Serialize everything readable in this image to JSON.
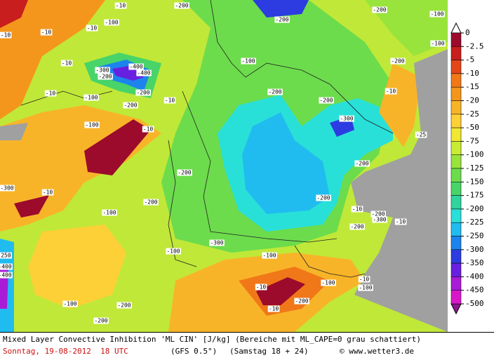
{
  "map": {
    "contour_labels": [
      -10,
      -10,
      -10,
      -100,
      -200,
      -10,
      -300,
      -400,
      -400,
      -200,
      -200,
      -100,
      -200,
      -10,
      -100,
      -10,
      -10,
      -100,
      -200,
      -200,
      -200,
      -100,
      -100,
      -200,
      -10,
      -200,
      -300,
      -25,
      -200,
      -200,
      -10,
      -200,
      -300,
      -200,
      -10,
      -200,
      -200,
      -100,
      -10,
      -300,
      -300,
      -100,
      -100,
      -10,
      -10,
      -100,
      -10,
      -100,
      -200,
      -200,
      -100,
      -400,
      -400,
      -250,
      -200,
      -10
    ]
  },
  "legend": {
    "levels": [
      0,
      -2.5,
      -5,
      -10,
      -15,
      -20,
      -25,
      -50,
      -75,
      -100,
      -125,
      -150,
      -175,
      -200,
      -225,
      -250,
      -300,
      -350,
      -400,
      -450,
      -500
    ],
    "colors": [
      "#9c0a2c",
      "#c81e1e",
      "#e4461a",
      "#f07818",
      "#f4961c",
      "#f8b428",
      "#fcd036",
      "#f0e832",
      "#c8ec34",
      "#98e43c",
      "#6cdc4c",
      "#48d468",
      "#30d49c",
      "#28e0d8",
      "#20bcf0",
      "#1c84ec",
      "#2c3ce0",
      "#6820e0",
      "#a81cd8",
      "#d818c8"
    ],
    "top_color": "#ffffff",
    "bottom_color": "#8c1890"
  },
  "footer": {
    "description": "Mixed Layer Convective Inhibition 'ML CIN' [J/kg] (Bereiche mit ML_CAPE=0 grau schattiert)",
    "date": "Sonntag, 19-08-2012  18 UTC",
    "model": "(GFS 0.5°)",
    "run": "(Samstag 18 + 24)",
    "credit": "© www.wetter3.de"
  }
}
